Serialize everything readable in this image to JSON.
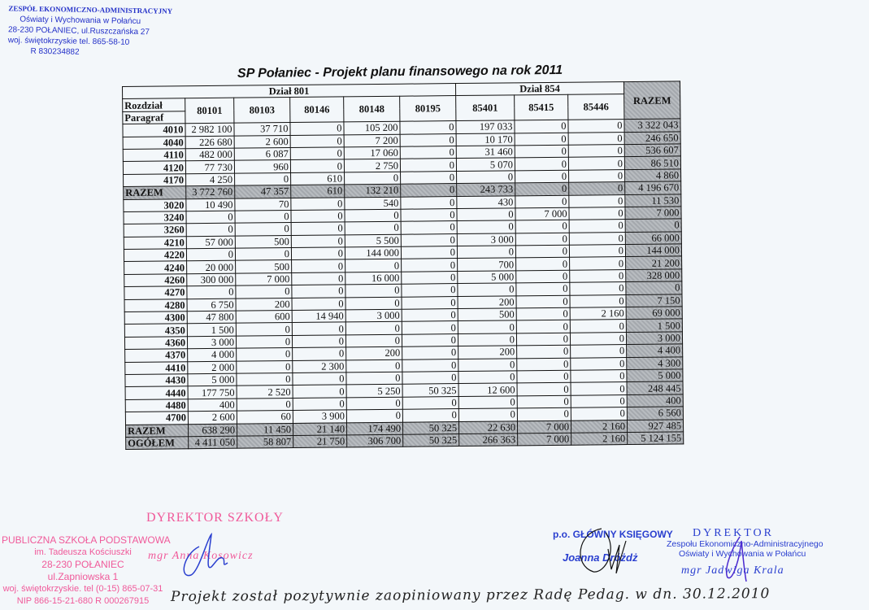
{
  "stamp_top": {
    "lines": [
      "ZESPÓŁ EKONOMICZNO-ADMINISTRACYJNY",
      "Oświaty i Wychowania w Połańcu",
      "28-230 POŁANIEC, ul.Ruszczańska 27",
      "woj. świętokrzyskie  tel. 865-58-10",
      "R  830234882"
    ]
  },
  "title": "SP Połaniec - Projekt planu finansowego na rok 2011",
  "table": {
    "group_headers": [
      "Dział 801",
      "Dział 854"
    ],
    "total_header": "RAZEM",
    "row_header_top": "Rozdział",
    "row_header_bottom": "Paragraf",
    "columns": [
      "80101",
      "80103",
      "80146",
      "80148",
      "80195",
      "85401",
      "85415",
      "85446"
    ],
    "rows": [
      {
        "label": "4010",
        "values": [
          "2 982 100",
          "37 710",
          "0",
          "105 200",
          "0",
          "197 033",
          "0",
          "0",
          "3 322 043"
        ]
      },
      {
        "label": "4040",
        "values": [
          "226 680",
          "2 600",
          "0",
          "7 200",
          "0",
          "10 170",
          "0",
          "0",
          "246 650"
        ]
      },
      {
        "label": "4110",
        "values": [
          "482 000",
          "6 087",
          "0",
          "17 060",
          "0",
          "31 460",
          "0",
          "0",
          "536 607"
        ]
      },
      {
        "label": "4120",
        "values": [
          "77 730",
          "960",
          "0",
          "2 750",
          "0",
          "5 070",
          "0",
          "0",
          "86 510"
        ]
      },
      {
        "label": "4170",
        "values": [
          "4 250",
          "0",
          "610",
          "0",
          "0",
          "0",
          "0",
          "0",
          "4 860"
        ]
      },
      {
        "label": "RAZEM",
        "total": true,
        "values": [
          "3 772 760",
          "47 357",
          "610",
          "132 210",
          "0",
          "243 733",
          "0",
          "0",
          "4 196 670"
        ]
      },
      {
        "label": "3020",
        "values": [
          "10 490",
          "70",
          "0",
          "540",
          "0",
          "430",
          "0",
          "0",
          "11 530"
        ]
      },
      {
        "label": "3240",
        "values": [
          "0",
          "0",
          "0",
          "0",
          "0",
          "0",
          "7 000",
          "0",
          "7 000"
        ]
      },
      {
        "label": "3260",
        "values": [
          "0",
          "0",
          "0",
          "0",
          "0",
          "0",
          "0",
          "0",
          "0"
        ]
      },
      {
        "label": "4210",
        "values": [
          "57 000",
          "500",
          "0",
          "5 500",
          "0",
          "3 000",
          "0",
          "0",
          "66 000"
        ]
      },
      {
        "label": "4220",
        "values": [
          "0",
          "0",
          "0",
          "144 000",
          "0",
          "0",
          "0",
          "0",
          "144 000"
        ]
      },
      {
        "label": "4240",
        "values": [
          "20 000",
          "500",
          "0",
          "0",
          "0",
          "700",
          "0",
          "0",
          "21 200"
        ]
      },
      {
        "label": "4260",
        "values": [
          "300 000",
          "7 000",
          "0",
          "16 000",
          "0",
          "5 000",
          "0",
          "0",
          "328 000"
        ]
      },
      {
        "label": "4270",
        "values": [
          "0",
          "0",
          "0",
          "0",
          "0",
          "0",
          "0",
          "0",
          "0"
        ]
      },
      {
        "label": "4280",
        "values": [
          "6 750",
          "200",
          "0",
          "0",
          "0",
          "200",
          "0",
          "0",
          "7 150"
        ]
      },
      {
        "label": "4300",
        "values": [
          "47 800",
          "600",
          "14 940",
          "3 000",
          "0",
          "500",
          "0",
          "2 160",
          "69 000"
        ]
      },
      {
        "label": "4350",
        "values": [
          "1 500",
          "0",
          "0",
          "0",
          "0",
          "0",
          "0",
          "0",
          "1 500"
        ]
      },
      {
        "label": "4360",
        "values": [
          "3 000",
          "0",
          "0",
          "0",
          "0",
          "0",
          "0",
          "0",
          "3 000"
        ]
      },
      {
        "label": "4370",
        "values": [
          "4 000",
          "0",
          "0",
          "200",
          "0",
          "200",
          "0",
          "0",
          "4 400"
        ]
      },
      {
        "label": "4410",
        "values": [
          "2 000",
          "0",
          "2 300",
          "0",
          "0",
          "0",
          "0",
          "0",
          "4 300"
        ]
      },
      {
        "label": "4430",
        "values": [
          "5 000",
          "0",
          "0",
          "0",
          "0",
          "0",
          "0",
          "0",
          "5 000"
        ]
      },
      {
        "label": "4440",
        "values": [
          "177 750",
          "2 520",
          "0",
          "5 250",
          "50 325",
          "12 600",
          "0",
          "0",
          "248 445"
        ]
      },
      {
        "label": "4480",
        "values": [
          "400",
          "0",
          "0",
          "0",
          "0",
          "0",
          "0",
          "0",
          "400"
        ]
      },
      {
        "label": "4700",
        "values": [
          "2 600",
          "60",
          "3 900",
          "0",
          "0",
          "0",
          "0",
          "0",
          "6 560"
        ]
      },
      {
        "label": "RAZEM",
        "total": true,
        "values": [
          "638 290",
          "11 450",
          "21 140",
          "174 490",
          "50 325",
          "22 630",
          "7 000",
          "2 160",
          "927 485"
        ]
      },
      {
        "label": "OGÓŁEM",
        "total": true,
        "values": [
          "4 411 050",
          "58 807",
          "21 750",
          "306 700",
          "50 325",
          "266 363",
          "7 000",
          "2 160",
          "5 124 155"
        ]
      }
    ]
  },
  "signatures": {
    "school_stamp": [
      "PUBLICZNA SZKOŁA PODSTAWOWA",
      "im. Tadeusza Kościuszki",
      "28-230 POŁANIEC",
      "ul.Zapniowska 1",
      "woj. świętokrzyskie. tel (0-15) 865-07-31",
      "NIP 866-15-21-680     R 000267915"
    ],
    "school_director_title": "DYREKTOR SZKOŁY",
    "school_director_name": "mgr Anna Kosowicz",
    "accountant_title": "p.o. GŁÓWNY KSIĘGOWY",
    "accountant_name": "Joanna Dróżdż",
    "director_title": "DYREKTOR",
    "director_org_1": "Zespołu Ekonomiczno-Administracyjnego",
    "director_org_2": "Oświaty i Wychowania w Połańcu",
    "director_name": "mgr Jadwiga Krala"
  },
  "handwritten_note": "Projekt został pozytywnie zaopiniowany przez Radę Pedag. w dn. 30.12.2010",
  "colors": {
    "stamp_blue": "#2a3fcf",
    "stamp_pink": "#f05a9a",
    "total_shading": "#adb1b5"
  }
}
